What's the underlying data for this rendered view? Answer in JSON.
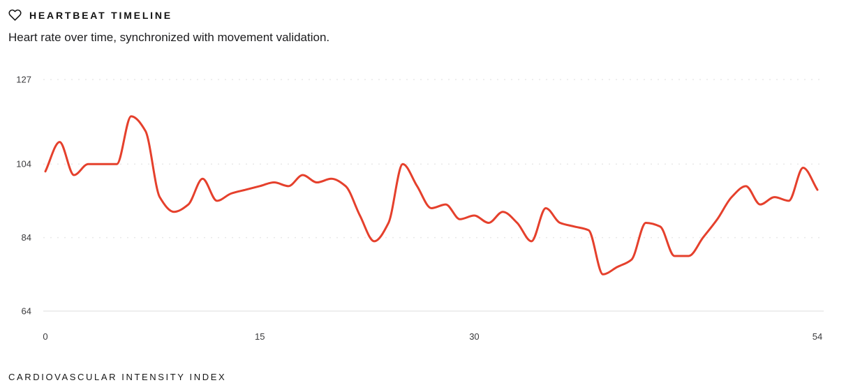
{
  "header": {
    "icon": "heart-icon",
    "title": "HEARTBEAT TIMELINE",
    "subtitle": "Heart rate over time, synchronized with movement validation."
  },
  "footer": {
    "label": "CARDIOVASCULAR INTENSITY INDEX"
  },
  "colors": {
    "line": "#e5402c",
    "grid_dotted": "#e9e9e9",
    "grid_solid": "#e4e4e4",
    "axis_text": "#3a3a3c"
  },
  "chart_data": {
    "type": "line",
    "title": "HEARTBEAT TIMELINE",
    "subtitle": "Heart rate over time, synchronized with movement validation.",
    "xlabel": "CARDIOVASCULAR INTENSITY INDEX",
    "ylabel": "",
    "legend": "none",
    "grid": "horizontal dotted, solid baseline",
    "xlim": [
      0,
      54
    ],
    "ylim": [
      64,
      127
    ],
    "x_ticks": [
      0,
      15,
      30,
      54
    ],
    "y_ticks": [
      127,
      104,
      84,
      64
    ],
    "x": [
      0,
      1,
      2,
      3,
      4,
      5,
      6,
      7,
      8,
      9,
      10,
      11,
      12,
      13,
      14,
      15,
      16,
      17,
      18,
      19,
      20,
      21,
      22,
      23,
      24,
      25,
      26,
      27,
      28,
      29,
      30,
      31,
      32,
      33,
      34,
      35,
      36,
      37,
      38,
      39,
      40,
      41,
      42,
      43,
      44,
      45,
      46,
      47,
      48,
      49,
      50,
      51,
      52,
      53,
      54
    ],
    "series": [
      {
        "name": "heart-rate",
        "values": [
          102,
          110,
          101,
          104,
          104,
          104,
          117,
          113,
          95,
          91,
          93,
          100,
          94,
          96,
          97,
          98,
          99,
          98,
          101,
          99,
          100,
          98,
          90,
          83,
          88,
          104,
          98,
          92,
          93,
          89,
          90,
          88,
          91,
          88,
          83,
          92,
          88,
          87,
          86,
          74,
          76,
          78,
          88,
          87,
          79,
          79,
          84,
          89,
          95,
          98,
          93,
          95,
          94,
          103,
          97
        ]
      }
    ]
  }
}
